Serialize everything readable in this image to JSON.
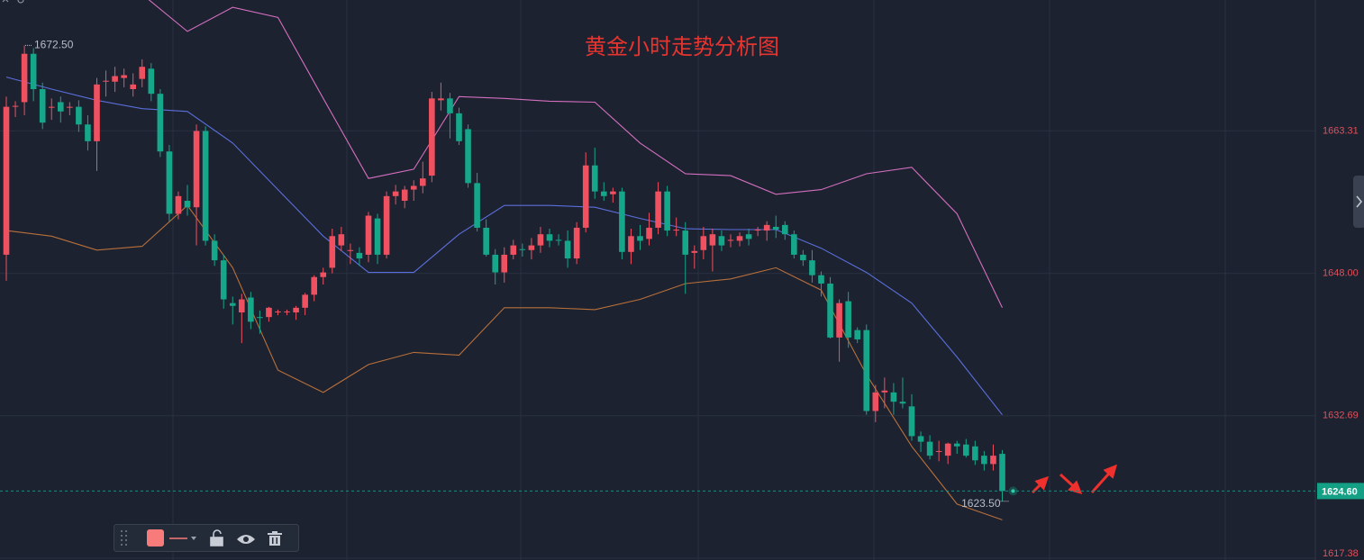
{
  "chart_data": {
    "type": "candlestick",
    "title": "黄金小时走势分析图",
    "candles": [
      [
        1650.0,
        1667.0,
        1647.2,
        1665.9
      ],
      [
        1665.9,
        1666.5,
        1664.8,
        1666.0
      ],
      [
        1666.4,
        1672.5,
        1665.0,
        1671.6
      ],
      [
        1671.6,
        1672.2,
        1666.5,
        1667.8
      ],
      [
        1667.8,
        1668.5,
        1663.5,
        1664.2
      ],
      [
        1665.8,
        1666.8,
        1664.5,
        1665.9
      ],
      [
        1666.4,
        1667.0,
        1664.2,
        1665.4
      ],
      [
        1665.8,
        1666.4,
        1665.0,
        1665.9
      ],
      [
        1665.9,
        1666.6,
        1663.2,
        1664.0
      ],
      [
        1664.0,
        1665.0,
        1661.2,
        1662.2
      ],
      [
        1662.2,
        1669.0,
        1659.0,
        1668.3
      ],
      [
        1668.6,
        1669.8,
        1667.0,
        1668.7
      ],
      [
        1668.6,
        1670.2,
        1667.5,
        1669.2
      ],
      [
        1669.0,
        1670.0,
        1668.0,
        1669.3
      ],
      [
        1667.8,
        1669.5,
        1667.0,
        1668.3
      ],
      [
        1668.9,
        1671.0,
        1668.0,
        1670.2
      ],
      [
        1670.0,
        1670.6,
        1666.5,
        1667.3
      ],
      [
        1667.3,
        1667.8,
        1660.5,
        1661.1
      ],
      [
        1661.1,
        1661.8,
        1653.6,
        1654.4
      ],
      [
        1654.4,
        1656.8,
        1653.8,
        1656.3
      ],
      [
        1655.8,
        1657.5,
        1654.2,
        1655.1
      ],
      [
        1655.1,
        1664.0,
        1651.0,
        1663.3
      ],
      [
        1663.3,
        1663.8,
        1651.0,
        1651.5
      ],
      [
        1651.5,
        1652.2,
        1648.8,
        1649.4
      ],
      [
        1649.4,
        1650.0,
        1644.2,
        1645.2
      ],
      [
        1644.8,
        1645.5,
        1642.5,
        1644.5
      ],
      [
        1643.8,
        1645.8,
        1640.5,
        1645.2
      ],
      [
        1645.4,
        1646.0,
        1642.0,
        1642.8
      ],
      [
        1643.3,
        1644.0,
        1641.5,
        1643.2
      ],
      [
        1643.3,
        1644.4,
        1642.8,
        1644.3
      ],
      [
        1643.8,
        1644.1,
        1643.5,
        1643.9
      ],
      [
        1643.8,
        1644.1,
        1643.5,
        1643.9
      ],
      [
        1643.8,
        1644.5,
        1643.0,
        1644.3
      ],
      [
        1644.3,
        1645.9,
        1643.5,
        1645.7
      ],
      [
        1645.7,
        1647.8,
        1645.0,
        1647.6
      ],
      [
        1647.6,
        1648.6,
        1646.8,
        1648.1
      ],
      [
        1648.6,
        1652.8,
        1648.0,
        1652.0
      ],
      [
        1651.0,
        1653.0,
        1650.4,
        1652.2
      ],
      [
        1650.4,
        1651.2,
        1649.0,
        1650.5
      ],
      [
        1650.2,
        1650.8,
        1648.8,
        1649.6
      ],
      [
        1650.0,
        1654.6,
        1649.2,
        1654.2
      ],
      [
        1653.9,
        1654.4,
        1649.0,
        1650.0
      ],
      [
        1650.0,
        1656.8,
        1649.6,
        1656.3
      ],
      [
        1656.3,
        1657.5,
        1655.4,
        1656.8
      ],
      [
        1655.8,
        1657.4,
        1655.0,
        1657.0
      ],
      [
        1657.0,
        1658.0,
        1655.8,
        1657.4
      ],
      [
        1657.4,
        1660.0,
        1656.6,
        1658.2
      ],
      [
        1658.5,
        1667.5,
        1657.8,
        1666.8
      ],
      [
        1666.6,
        1668.5,
        1665.5,
        1666.8
      ],
      [
        1666.8,
        1667.4,
        1662.5,
        1665.2
      ],
      [
        1665.2,
        1665.8,
        1661.8,
        1662.2
      ],
      [
        1663.5,
        1664.0,
        1657.2,
        1657.7
      ],
      [
        1657.7,
        1658.8,
        1652.5,
        1652.9
      ],
      [
        1652.9,
        1653.8,
        1649.8,
        1650.0
      ],
      [
        1650.0,
        1650.6,
        1646.8,
        1648.1
      ],
      [
        1648.1,
        1650.8,
        1647.0,
        1650.0
      ],
      [
        1650.0,
        1651.6,
        1649.5,
        1651.0
      ],
      [
        1650.6,
        1651.2,
        1649.8,
        1650.5
      ],
      [
        1650.5,
        1651.8,
        1649.5,
        1651.0
      ],
      [
        1651.0,
        1653.0,
        1650.2,
        1652.2
      ],
      [
        1652.2,
        1652.8,
        1650.8,
        1651.5
      ],
      [
        1651.6,
        1652.2,
        1651.0,
        1651.5
      ],
      [
        1651.5,
        1652.6,
        1648.6,
        1649.6
      ],
      [
        1649.6,
        1653.5,
        1649.0,
        1652.9
      ],
      [
        1652.9,
        1661.0,
        1652.4,
        1659.6
      ],
      [
        1659.6,
        1661.5,
        1656.0,
        1656.8
      ],
      [
        1656.8,
        1657.8,
        1655.8,
        1656.3
      ],
      [
        1656.5,
        1657.2,
        1655.6,
        1656.8
      ],
      [
        1656.8,
        1657.2,
        1649.5,
        1650.3
      ],
      [
        1650.3,
        1652.8,
        1649.0,
        1652.0
      ],
      [
        1652.0,
        1653.2,
        1650.5,
        1651.5
      ],
      [
        1651.7,
        1654.5,
        1651.0,
        1652.9
      ],
      [
        1652.9,
        1657.8,
        1652.2,
        1656.8
      ],
      [
        1656.8,
        1657.4,
        1652.0,
        1652.6
      ],
      [
        1652.6,
        1654.0,
        1652.0,
        1652.7
      ],
      [
        1652.6,
        1653.5,
        1645.8,
        1650.0
      ],
      [
        1650.2,
        1651.0,
        1648.5,
        1650.4
      ],
      [
        1650.5,
        1653.0,
        1649.5,
        1652.0
      ],
      [
        1651.0,
        1652.8,
        1648.2,
        1652.2
      ],
      [
        1652.0,
        1652.6,
        1650.4,
        1651.0
      ],
      [
        1651.5,
        1652.2,
        1650.8,
        1651.6
      ],
      [
        1651.5,
        1652.4,
        1650.9,
        1652.0
      ],
      [
        1652.2,
        1652.8,
        1651.0,
        1651.7
      ],
      [
        1652.6,
        1653.0,
        1652.0,
        1652.7
      ],
      [
        1652.6,
        1653.6,
        1651.5,
        1653.2
      ],
      [
        1653.0,
        1654.2,
        1651.8,
        1652.7
      ],
      [
        1653.2,
        1653.6,
        1651.6,
        1652.2
      ],
      [
        1652.2,
        1652.6,
        1649.6,
        1650.0
      ],
      [
        1650.0,
        1650.5,
        1648.8,
        1649.4
      ],
      [
        1649.4,
        1650.5,
        1647.0,
        1647.8
      ],
      [
        1647.8,
        1648.2,
        1645.5,
        1646.9
      ],
      [
        1646.9,
        1647.6,
        1641.0,
        1641.1
      ],
      [
        1641.1,
        1645.2,
        1638.5,
        1644.8
      ],
      [
        1645.0,
        1646.0,
        1640.0,
        1641.1
      ],
      [
        1641.9,
        1642.2,
        1640.5,
        1640.9
      ],
      [
        1641.9,
        1642.5,
        1632.8,
        1633.2
      ],
      [
        1633.2,
        1636.0,
        1632.0,
        1635.2
      ],
      [
        1635.2,
        1636.8,
        1633.5,
        1635.4
      ],
      [
        1635.2,
        1636.2,
        1632.8,
        1634.2
      ],
      [
        1634.2,
        1636.8,
        1633.5,
        1634.0
      ],
      [
        1633.7,
        1635.0,
        1630.0,
        1630.5
      ],
      [
        1630.5,
        1631.0,
        1628.8,
        1629.9
      ],
      [
        1629.9,
        1630.6,
        1628.0,
        1628.4
      ],
      [
        1628.9,
        1630.0,
        1627.8,
        1628.9
      ],
      [
        1628.4,
        1629.8,
        1627.5,
        1629.7
      ],
      [
        1629.7,
        1630.0,
        1628.6,
        1629.4
      ],
      [
        1629.6,
        1630.2,
        1628.2,
        1628.4
      ],
      [
        1629.4,
        1630.0,
        1627.4,
        1627.9
      ],
      [
        1628.4,
        1628.9,
        1626.8,
        1627.5
      ],
      [
        1627.5,
        1629.6,
        1626.8,
        1628.4
      ],
      [
        1628.6,
        1629.0,
        1623.5,
        1624.6
      ]
    ],
    "up_color": "#ef5160",
    "down_color": "#16a68a",
    "band_x": [
      0,
      5,
      10,
      15,
      20,
      25,
      30,
      35,
      40,
      45,
      50,
      55,
      60,
      65,
      70,
      75,
      80,
      85,
      90,
      95,
      100,
      105,
      110
    ],
    "lines": [
      {
        "color": "#d46fbf",
        "values": [
          null,
          null,
          null,
          1678.0,
          1674.0,
          1676.6,
          1675.5,
          1666.8,
          1658.2,
          1659.2,
          1667.0,
          1666.8,
          1666.5,
          1666.4,
          1662.0,
          1658.7,
          1658.5,
          1656.5,
          1657.0,
          1658.7,
          1659.4,
          1654.4,
          1644.3
        ]
      },
      {
        "color": "#5b6fdc",
        "values": [
          1669.1,
          1667.8,
          1666.6,
          1665.7,
          1665.4,
          1662.0,
          1657.0,
          1652.0,
          1648.1,
          1648.1,
          1652.2,
          1655.3,
          1655.3,
          1655.1,
          1653.9,
          1652.8,
          1652.7,
          1652.7,
          1650.7,
          1648.1,
          1644.8,
          1639.0,
          1632.8
        ]
      },
      {
        "color": "#b8703a",
        "values": [
          1652.6,
          1652.0,
          1650.5,
          1650.9,
          1655.3,
          1648.6,
          1637.6,
          1635.2,
          1638.2,
          1639.5,
          1639.2,
          1644.3,
          1644.3,
          1644.1,
          1645.2,
          1646.9,
          1647.4,
          1648.6,
          1646.2,
          1637.1,
          1629.4,
          1623.2,
          1621.5
        ]
      }
    ],
    "ylim": [
      1617.38,
      1677.38
    ],
    "yticks": [
      1617.38,
      1632.69,
      {
        "value": 1648,
        "label": "1648.00"
      },
      1663.31
    ],
    "grid": true,
    "high_marker": {
      "value": 1672.5,
      "label": "1672.50"
    },
    "low_marker": {
      "value": 1623.5,
      "label": "1623.50"
    },
    "last_price": {
      "value": 1624.6,
      "label": "1624.60"
    }
  }
}
